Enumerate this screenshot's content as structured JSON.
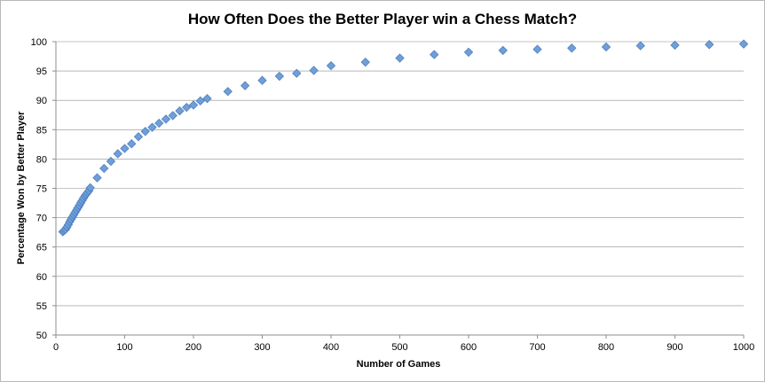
{
  "chart_data": {
    "type": "scatter",
    "title": "How Often Does the Better Player win a Chess Match?",
    "xlabel": "Number of Games",
    "ylabel": "Percentage Won by Better Player",
    "xlim": [
      0,
      1000
    ],
    "ylim": [
      50,
      100
    ],
    "x_ticks": [
      0,
      100,
      200,
      300,
      400,
      500,
      600,
      700,
      800,
      900,
      1000
    ],
    "y_ticks": [
      50,
      55,
      60,
      65,
      70,
      75,
      80,
      85,
      90,
      95,
      100
    ],
    "grid": "horizontal",
    "legend": "none",
    "marker": "diamond",
    "marker_color": "#6f9fd8",
    "marker_edge_color": "#4f7fbf",
    "series": [
      {
        "points": [
          [
            10,
            67.6
          ],
          [
            12,
            67.8
          ],
          [
            14,
            68.0
          ],
          [
            16,
            68.4
          ],
          [
            18,
            68.8
          ],
          [
            20,
            69.3
          ],
          [
            22,
            69.7
          ],
          [
            24,
            70.1
          ],
          [
            26,
            70.5
          ],
          [
            28,
            70.9
          ],
          [
            30,
            71.3
          ],
          [
            32,
            71.7
          ],
          [
            34,
            72.1
          ],
          [
            36,
            72.5
          ],
          [
            38,
            72.9
          ],
          [
            40,
            73.3
          ],
          [
            42,
            73.7
          ],
          [
            44,
            74.0
          ],
          [
            46,
            74.3
          ],
          [
            48,
            74.6
          ],
          [
            50,
            75.1
          ],
          [
            60,
            76.8
          ],
          [
            70,
            78.4
          ],
          [
            80,
            79.6
          ],
          [
            90,
            80.9
          ],
          [
            100,
            81.8
          ],
          [
            110,
            82.6
          ],
          [
            120,
            83.8
          ],
          [
            130,
            84.7
          ],
          [
            140,
            85.4
          ],
          [
            150,
            86.1
          ],
          [
            160,
            86.8
          ],
          [
            170,
            87.4
          ],
          [
            180,
            88.2
          ],
          [
            190,
            88.8
          ],
          [
            200,
            89.2
          ],
          [
            210,
            89.9
          ],
          [
            220,
            90.3
          ],
          [
            250,
            91.5
          ],
          [
            275,
            92.5
          ],
          [
            300,
            93.4
          ],
          [
            325,
            94.1
          ],
          [
            350,
            94.6
          ],
          [
            375,
            95.1
          ],
          [
            400,
            95.9
          ],
          [
            450,
            96.5
          ],
          [
            500,
            97.2
          ],
          [
            550,
            97.8
          ],
          [
            600,
            98.2
          ],
          [
            650,
            98.5
          ],
          [
            700,
            98.7
          ],
          [
            750,
            98.9
          ],
          [
            800,
            99.1
          ],
          [
            850,
            99.3
          ],
          [
            900,
            99.4
          ],
          [
            950,
            99.5
          ],
          [
            1000,
            99.6
          ]
        ]
      }
    ]
  }
}
